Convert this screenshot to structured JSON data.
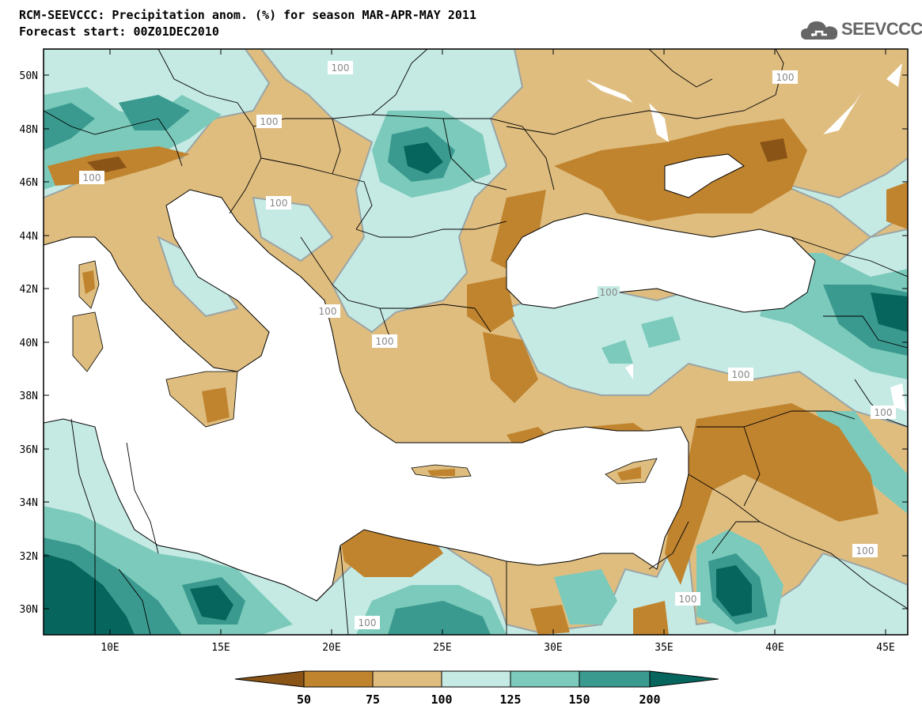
{
  "title_line1": "RCM-SEEVCCC: Precipitation anom. (%) for season MAR-APR-MAY 2011",
  "title_line2": "Forecast start: 00Z01DEC2010",
  "logo_text": "SEEVCCC",
  "map": {
    "lat_range": [
      29,
      51
    ],
    "lon_range": [
      7,
      46
    ],
    "lat_ticks": [
      "30N",
      "32N",
      "34N",
      "36N",
      "38N",
      "40N",
      "42N",
      "44N",
      "46N",
      "48N",
      "50N"
    ],
    "lon_ticks": [
      "10E",
      "15E",
      "20E",
      "25E",
      "30E",
      "35E",
      "40E",
      "45E"
    ],
    "contour_labels": [
      "100",
      "100",
      "100",
      "100",
      "100",
      "100",
      "100",
      "100",
      "100",
      "100",
      "100",
      "100",
      "100"
    ]
  },
  "colorbar": {
    "colors": [
      "#8b5417",
      "#c0842f",
      "#dfbd7f",
      "#c5eae4",
      "#7ccabb",
      "#3a9a8f",
      "#06665e"
    ],
    "labels": [
      "50",
      "75",
      "100",
      "125",
      "150",
      "200"
    ]
  },
  "colors": {
    "sea": "#ffffff",
    "contour": "#9aa5a5",
    "border": "#000000"
  }
}
